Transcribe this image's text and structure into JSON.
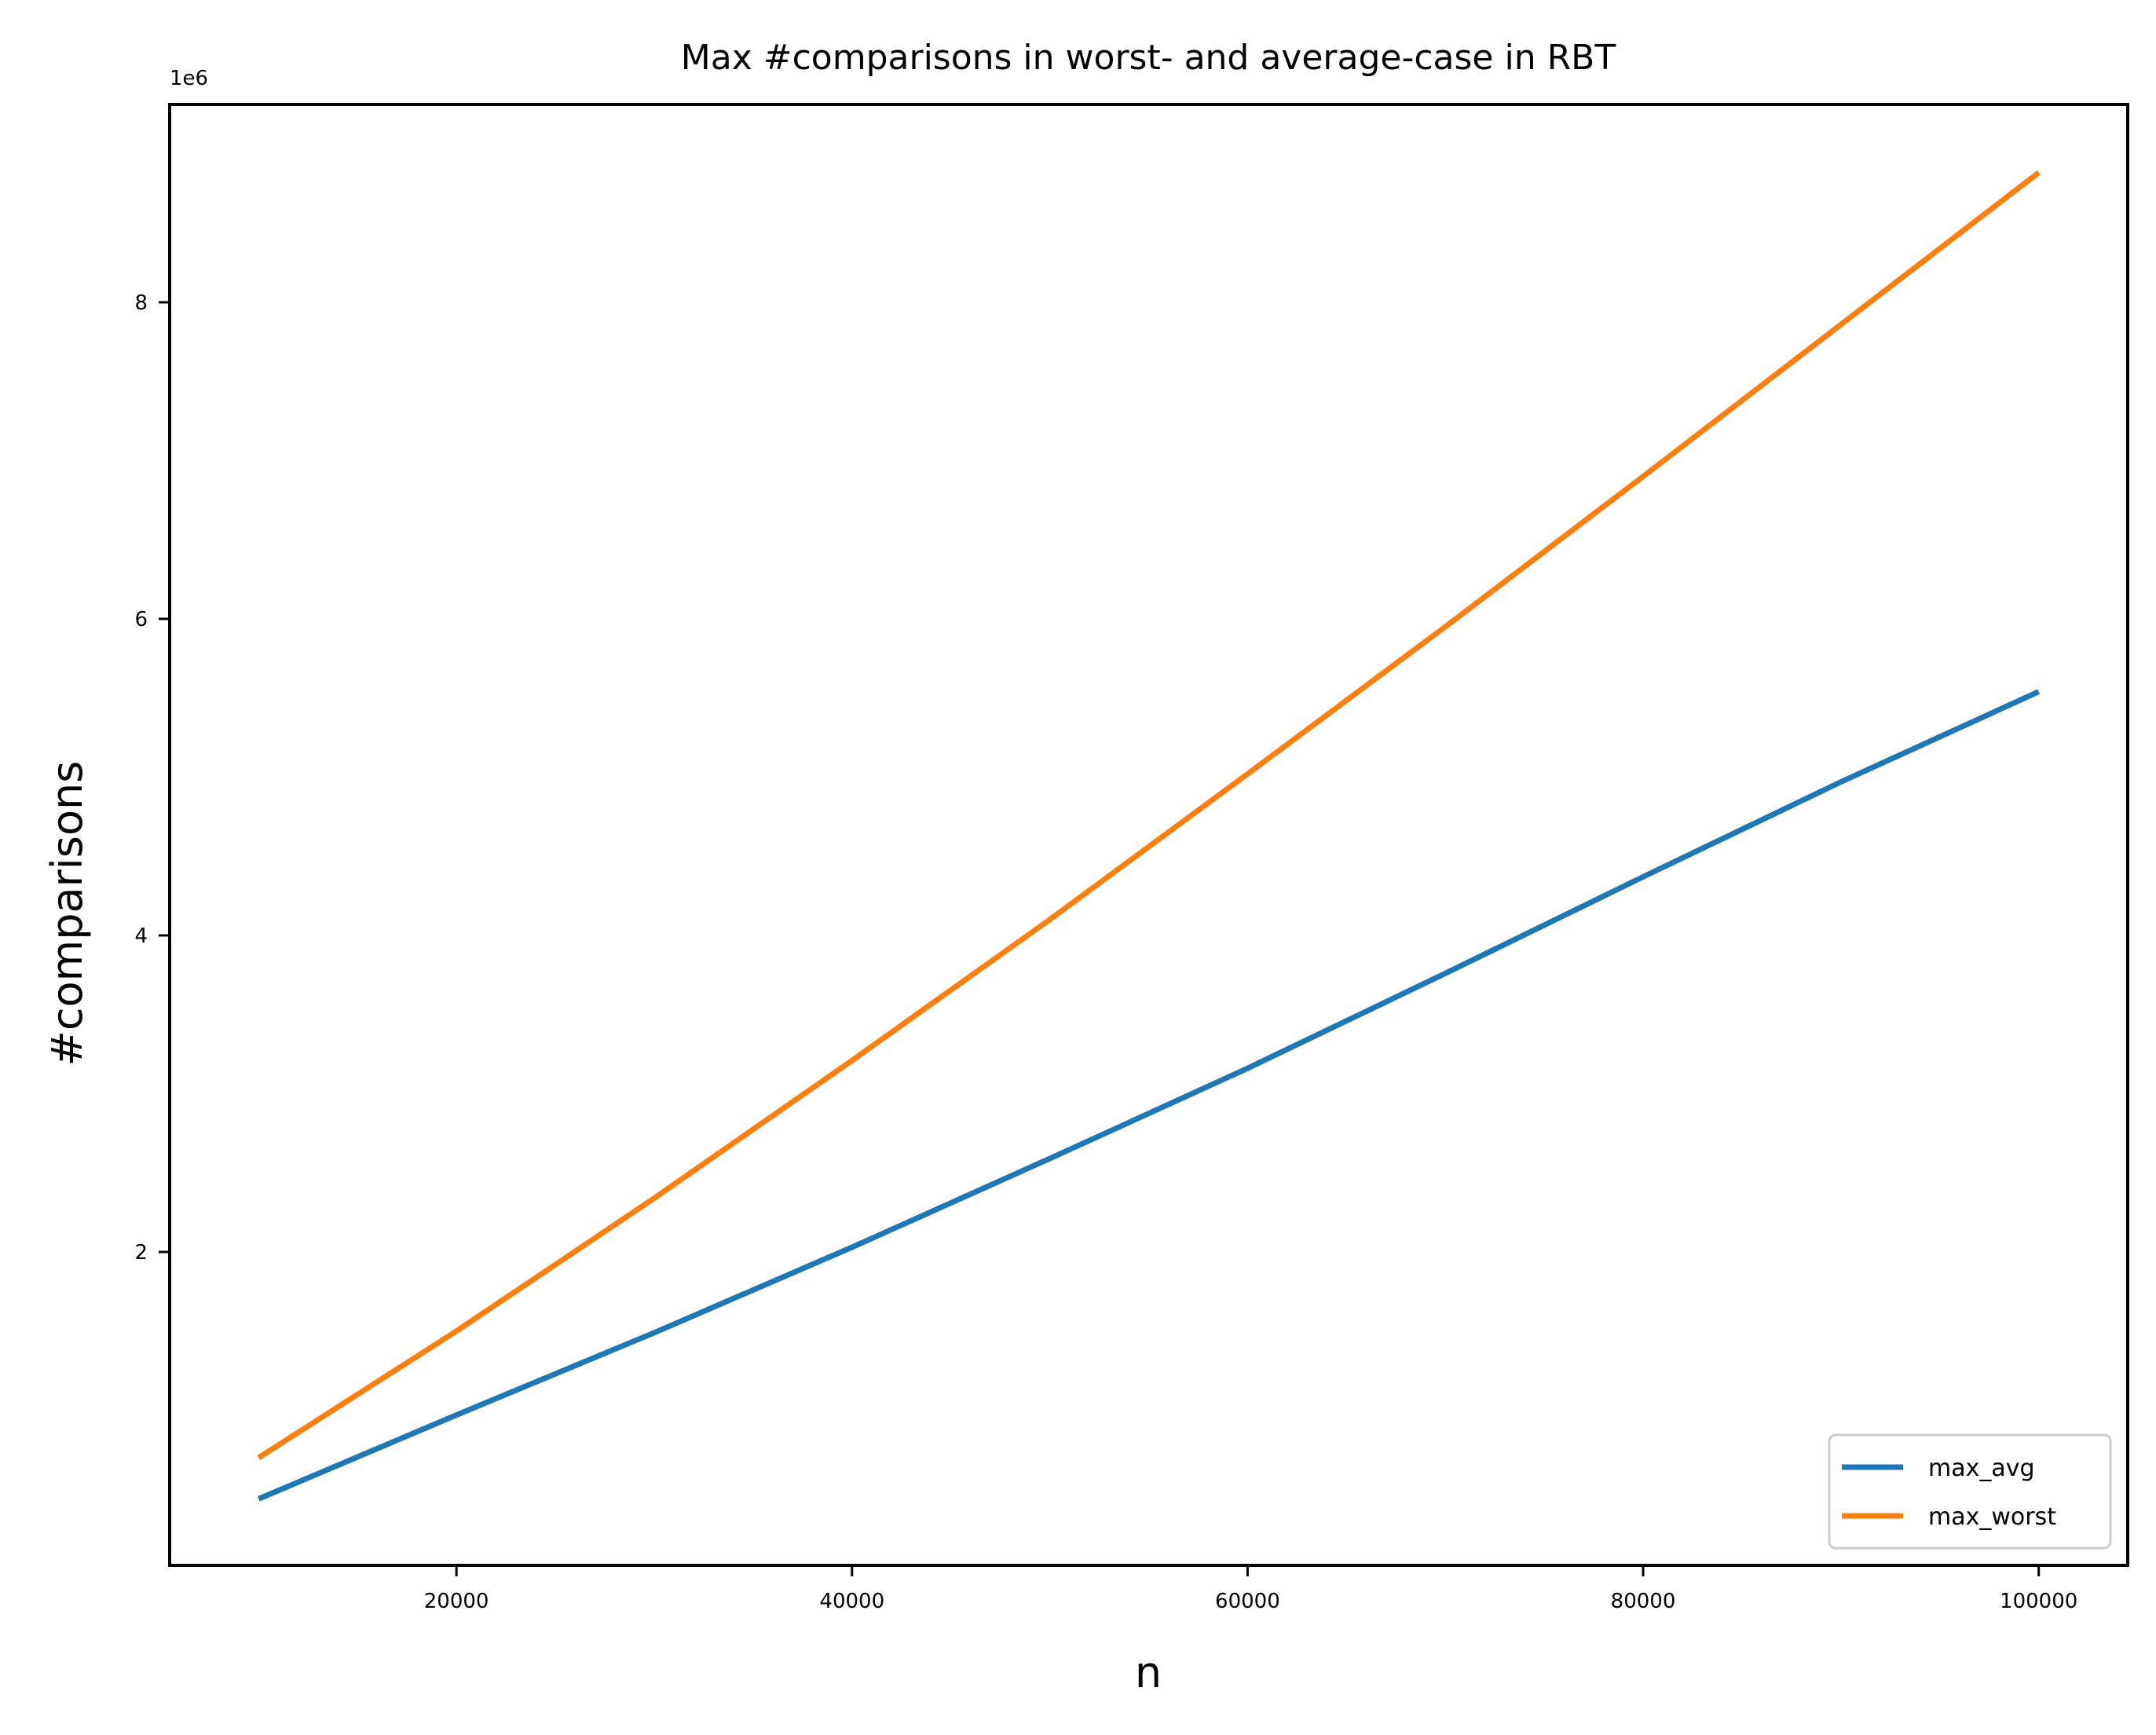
{
  "chart_data": {
    "type": "line",
    "title": "Max #comparisons in worst- and average-case in RBT",
    "xlabel": "n",
    "ylabel": "#comparisons",
    "y_offset_label": "1e6",
    "x": [
      10000,
      20000,
      30000,
      40000,
      50000,
      60000,
      70000,
      80000,
      90000,
      100000
    ],
    "series": [
      {
        "name": "max_avg",
        "color": "#1f77b4",
        "values": [
          440000,
          970000,
          1490000,
          2030000,
          2590000,
          3160000,
          3760000,
          4370000,
          4970000,
          5540000
        ]
      },
      {
        "name": "max_worst",
        "color": "#ff7f0e",
        "values": [
          700000,
          1500000,
          2340000,
          3210000,
          4100000,
          5020000,
          5950000,
          6900000,
          7860000,
          8820000
        ]
      }
    ],
    "xlim": [
      5500,
      104500
    ],
    "ylim": [
      20000,
      9250000
    ],
    "xticks": [
      20000,
      40000,
      60000,
      80000,
      100000
    ],
    "xtick_labels": [
      "20000",
      "40000",
      "60000",
      "80000",
      "100000"
    ],
    "yticks": [
      2000000,
      4000000,
      6000000,
      8000000
    ],
    "ytick_labels": [
      "2",
      "4",
      "6",
      "8"
    ],
    "grid": false,
    "legend_position": "lower-right"
  }
}
